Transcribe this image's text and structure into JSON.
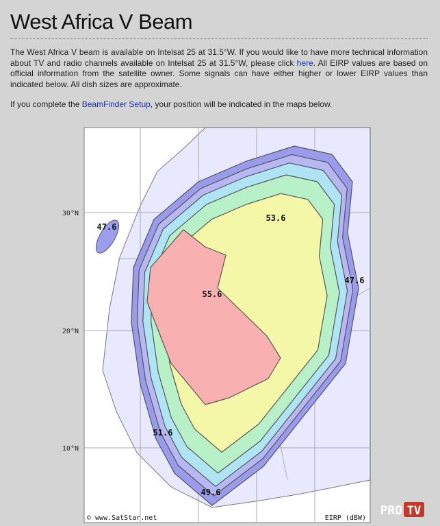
{
  "header": {
    "title": "West Africa V Beam"
  },
  "intro": {
    "p1_before": "The West Africa V beam is available on Intelsat 25 at 31.5°W. If you would like to have more technical information about TV and radio channels available on Intelsat 25 at 31.5°W, please click ",
    "p1_link": "here",
    "p1_after": ". All EIRP values are based on official information from the satellite owner. Some signals can have either higher or lower EIRP values than indicated below. All dish sizes are approximate.",
    "p2_before": "If you complete the ",
    "p2_link": "BeamFinder Setup",
    "p2_after": ", your position will be indicated in the maps below."
  },
  "map": {
    "latitude_labels": [
      "30°N",
      "20°N",
      "10°N"
    ],
    "contour_labels": [
      "47.6",
      "53.6",
      "55.6",
      "47.6",
      "51.6",
      "49.6"
    ],
    "copyright": "© www.SatStar.net",
    "unit": "EIRP (dBW)"
  },
  "watermark": {
    "pro": "PRO",
    "tv": "TV"
  }
}
